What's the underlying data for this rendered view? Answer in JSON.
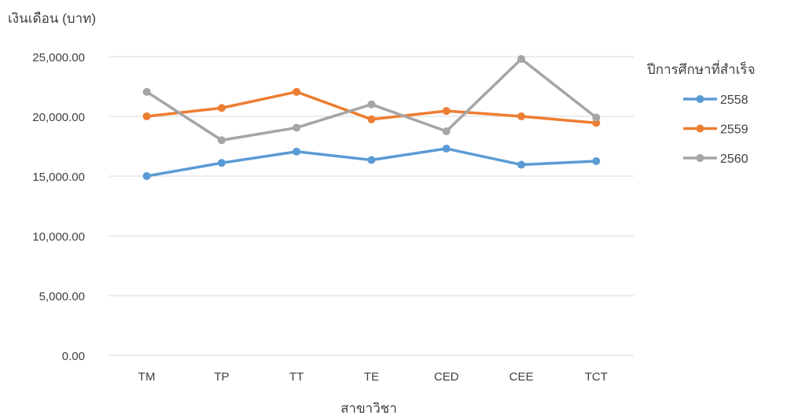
{
  "chart_data": {
    "type": "line",
    "title": "",
    "ylabel": "เงินเดือน (บาท)",
    "xlabel": "สาขาวิชา",
    "legend_title": "ปีการศึกษาที่สำเร็จ",
    "legend_position": "right",
    "grid": true,
    "ylim": [
      0,
      25000
    ],
    "y_ticks": [
      "0.00",
      "5,000.00",
      "10,000.00",
      "15,000.00",
      "20,000.00",
      "25,000.00"
    ],
    "categories": [
      "TM",
      "TP",
      "TT",
      "TE",
      "CED",
      "CEE",
      "TCT"
    ],
    "series": [
      {
        "name": "2558",
        "color": "#5b9bd5",
        "values": [
          15000,
          16100,
          17050,
          16350,
          17300,
          15950,
          16250
        ]
      },
      {
        "name": "2559",
        "color": "#ed7d31",
        "values": [
          20000,
          20700,
          22050,
          19750,
          20450,
          20000,
          19450
        ]
      },
      {
        "name": "2560",
        "color": "#a5a5a5",
        "values": [
          22050,
          18000,
          19050,
          21000,
          18750,
          24800,
          19900
        ]
      }
    ]
  }
}
